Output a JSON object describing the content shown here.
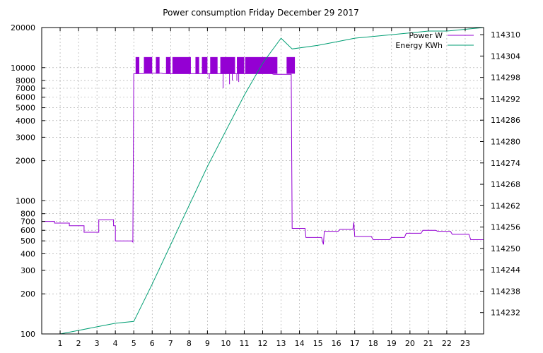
{
  "chart_data": {
    "type": "line",
    "title": "Power consumption Friday December 29 2017",
    "xlabel": "",
    "ylabel": "",
    "y2label": "",
    "grid": true,
    "legend_position": "top-right",
    "x_ticks": [
      1,
      2,
      3,
      4,
      5,
      6,
      7,
      8,
      9,
      10,
      11,
      12,
      13,
      14,
      15,
      16,
      17,
      18,
      19,
      20,
      21,
      22,
      23
    ],
    "xlim": [
      0,
      24
    ],
    "y_scale": "log",
    "ylim": [
      100,
      20000
    ],
    "y_ticks": [
      100,
      200,
      300,
      400,
      500,
      600,
      700,
      800,
      1000,
      2000,
      3000,
      4000,
      5000,
      6000,
      7000,
      8000,
      10000,
      20000
    ],
    "y2lim": [
      114226,
      114312
    ],
    "y2_ticks": [
      114232,
      114238,
      114244,
      114250,
      114256,
      114262,
      114268,
      114274,
      114280,
      114286,
      114292,
      114298,
      114304,
      114310
    ],
    "colors": {
      "power": "#9400d3",
      "energy": "#009e73"
    },
    "series": [
      {
        "name": "Power W",
        "axis": "y",
        "points": [
          [
            0,
            700
          ],
          [
            0.7,
            700
          ],
          [
            0.7,
            680
          ],
          [
            1.5,
            680
          ],
          [
            1.5,
            650
          ],
          [
            2.3,
            650
          ],
          [
            2.3,
            580
          ],
          [
            3.1,
            580
          ],
          [
            3.1,
            720
          ],
          [
            3.9,
            720
          ],
          [
            3.9,
            650
          ],
          [
            4.0,
            650
          ],
          [
            4.0,
            500
          ],
          [
            4.9,
            500
          ],
          [
            4.95,
            490
          ],
          [
            5.0,
            9000
          ],
          [
            5.5,
            9000
          ],
          [
            5.6,
            9100
          ],
          [
            6.5,
            9100
          ],
          [
            6.6,
            9000
          ],
          [
            7.0,
            9000
          ],
          [
            8.0,
            9000
          ],
          [
            9.0,
            9000
          ],
          [
            10.0,
            9000
          ],
          [
            11.0,
            9000
          ],
          [
            12.0,
            9000
          ],
          [
            12.5,
            9000
          ],
          [
            12.6,
            8900
          ],
          [
            13.4,
            8900
          ],
          [
            13.55,
            8900
          ],
          [
            13.6,
            620
          ],
          [
            14.3,
            620
          ],
          [
            14.35,
            530
          ],
          [
            15.2,
            530
          ],
          [
            15.3,
            470
          ],
          [
            15.35,
            590
          ],
          [
            16.1,
            590
          ],
          [
            16.2,
            610
          ],
          [
            16.9,
            610
          ],
          [
            16.95,
            690
          ],
          [
            17.0,
            540
          ],
          [
            17.9,
            540
          ],
          [
            18.0,
            510
          ],
          [
            18.9,
            510
          ],
          [
            19.0,
            530
          ],
          [
            19.7,
            530
          ],
          [
            19.8,
            570
          ],
          [
            20.6,
            570
          ],
          [
            20.7,
            600
          ],
          [
            21.4,
            600
          ],
          [
            21.5,
            590
          ],
          [
            22.2,
            590
          ],
          [
            22.3,
            560
          ],
          [
            23.2,
            560
          ],
          [
            23.3,
            510
          ],
          [
            24,
            510
          ]
        ],
        "spikes": {
          "bands": [
            [
              5.1,
              5.3
            ],
            [
              5.55,
              6.0
            ],
            [
              6.2,
              6.4
            ],
            [
              6.75,
              7.0
            ],
            [
              7.1,
              8.1
            ],
            [
              8.35,
              8.55
            ],
            [
              8.7,
              9.0
            ],
            [
              9.15,
              9.55
            ],
            [
              9.7,
              10.5
            ],
            [
              10.6,
              11.0
            ],
            [
              11.05,
              12.8
            ],
            [
              13.3,
              13.75
            ]
          ],
          "high": 12000,
          "low": 9000,
          "dips": [
            [
              9.1,
              8200
            ],
            [
              9.85,
              7000
            ],
            [
              10.2,
              7500
            ],
            [
              10.35,
              8000
            ],
            [
              10.6,
              8000
            ],
            [
              10.7,
              7800
            ]
          ]
        }
      },
      {
        "name": "Energy KWh",
        "axis": "y2",
        "points": [
          [
            1.0,
            114226
          ],
          [
            2.0,
            114227
          ],
          [
            3.0,
            114228
          ],
          [
            4.0,
            114229
          ],
          [
            5.0,
            114229.5
          ],
          [
            6.0,
            114240
          ],
          [
            7.0,
            114251
          ],
          [
            8.0,
            114262
          ],
          [
            9.0,
            114273
          ],
          [
            10.0,
            114283
          ],
          [
            11.0,
            114293
          ],
          [
            12.0,
            114302
          ],
          [
            13.0,
            114309
          ],
          [
            13.6,
            114306
          ],
          [
            15.0,
            114307
          ],
          [
            16.0,
            114308
          ],
          [
            17.0,
            114309
          ],
          [
            18.0,
            114309.5
          ],
          [
            19.0,
            114310
          ],
          [
            20.0,
            114310.5
          ],
          [
            21.0,
            114311
          ],
          [
            22.0,
            114311
          ],
          [
            23.0,
            114311.5
          ],
          [
            24.0,
            114312
          ]
        ]
      }
    ]
  }
}
